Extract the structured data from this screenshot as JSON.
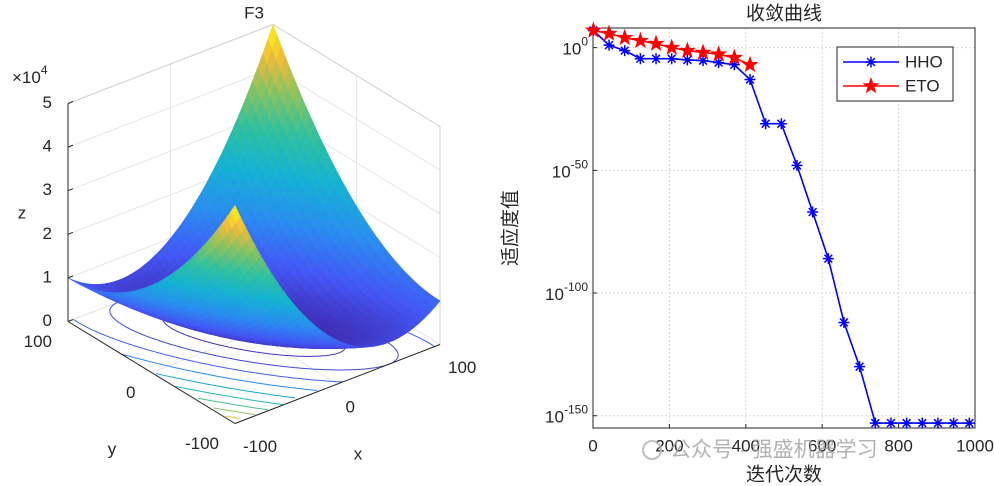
{
  "chart_data": [
    {
      "type": "surface",
      "title": "F3",
      "xlabel": "x",
      "ylabel": "y",
      "zlabel": "z",
      "xlim": [
        -100,
        100
      ],
      "ylim": [
        -100,
        100
      ],
      "zlim": [
        0,
        5
      ],
      "xticks": [
        -100,
        0,
        100
      ],
      "yticks": [
        -100,
        0,
        100
      ],
      "zticks": [
        0,
        1,
        2,
        3,
        4,
        5
      ],
      "zscale_label": "×10",
      "zscale_exponent": "4",
      "grid": true
    },
    {
      "type": "line",
      "title": "收敛曲线",
      "xlabel": "迭代次数",
      "ylabel": "适应度值",
      "x": [
        1,
        42,
        83,
        124,
        165,
        206,
        247,
        288,
        329,
        370,
        411,
        452,
        493,
        534,
        575,
        616,
        657,
        698,
        739,
        780,
        821,
        862,
        903,
        944,
        985
      ],
      "xlim": [
        0,
        1000
      ],
      "xticks": [
        0,
        200,
        400,
        600,
        800,
        1000
      ],
      "yscale": "log",
      "ylim": [
        1e-155,
        100000000.0
      ],
      "yticks": [
        {
          "value": 1e-150,
          "label": "10",
          "exponent": "-150"
        },
        {
          "value": 1e-100,
          "label": "10",
          "exponent": "-100"
        },
        {
          "value": 1e-50,
          "label": "10",
          "exponent": "-50"
        },
        {
          "value": 1,
          "label": "10",
          "exponent": "0"
        }
      ],
      "grid": true,
      "legend": "upper right",
      "series": [
        {
          "name": "HHO",
          "color": "#0000ff",
          "marker": "asterisk",
          "values": [
            10000000.0,
            10.0,
            0.06,
            3e-05,
            3e-05,
            3e-05,
            1e-05,
            5e-06,
            8e-07,
            1e-07,
            1e-13,
            1e-31,
            1e-31,
            1e-48,
            1e-67,
            1e-86,
            1e-112,
            1e-130,
            1e-153,
            1e-153,
            1e-153,
            1e-153,
            1e-153,
            1e-153,
            1e-153
          ]
        },
        {
          "name": "ETO",
          "color": "#ff0000",
          "marker": "star",
          "values": [
            10000000.0,
            500000.0,
            10000.0,
            600.0,
            40.0,
            1,
            0.06,
            0.01,
            0.002,
            8e-05,
            1e-07,
            null,
            null,
            null,
            null,
            null,
            null,
            null,
            null,
            null,
            null,
            null,
            null,
            null,
            null
          ]
        }
      ]
    }
  ],
  "watermark": "公众号 · 强盛机器学习"
}
